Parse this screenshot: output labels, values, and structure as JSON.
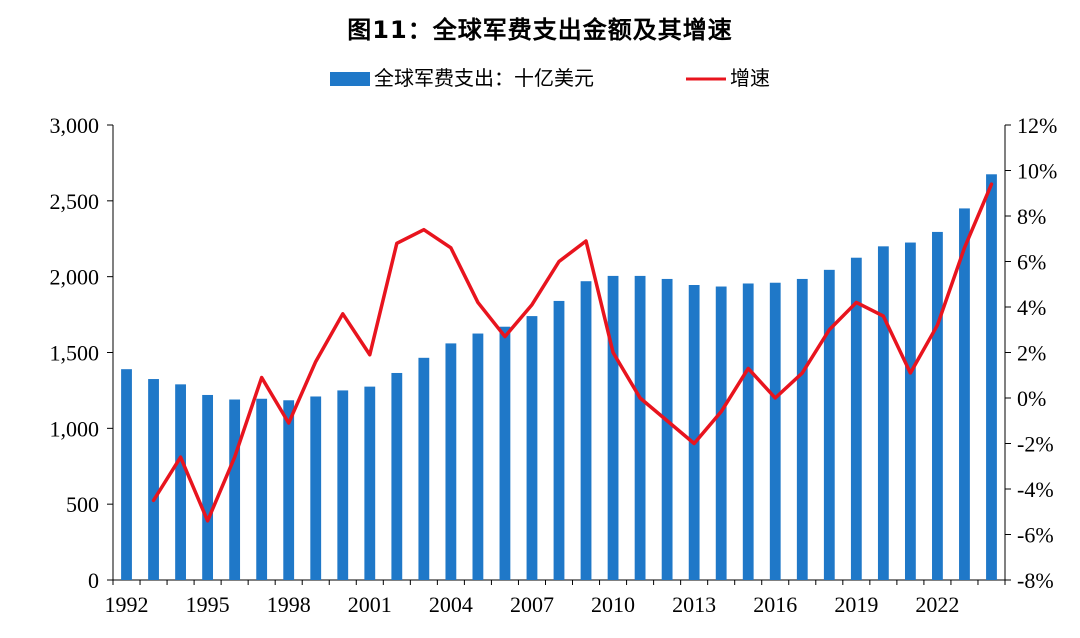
{
  "chart_data": {
    "type": "bar",
    "title": "图11：全球军费支出金额及其增速",
    "categories": [
      1992,
      1993,
      1994,
      1995,
      1996,
      1997,
      1998,
      1999,
      2000,
      2001,
      2002,
      2003,
      2004,
      2005,
      2006,
      2007,
      2008,
      2009,
      2010,
      2011,
      2012,
      2013,
      2014,
      2015,
      2016,
      2017,
      2018,
      2019,
      2020,
      2021,
      2022,
      2023,
      2024
    ],
    "x_tick_labels": [
      "1992",
      "1995",
      "1998",
      "2001",
      "2004",
      "2007",
      "2010",
      "2013",
      "2016",
      "2019",
      "2022"
    ],
    "series": [
      {
        "name": "全球军费支出：十亿美元",
        "type": "bar",
        "axis": "left",
        "color": "#1f78c8",
        "values": [
          1390,
          1325,
          1290,
          1220,
          1190,
          1195,
          1185,
          1210,
          1250,
          1275,
          1365,
          1465,
          1560,
          1625,
          1670,
          1740,
          1840,
          1970,
          2005,
          2005,
          1985,
          1945,
          1935,
          1955,
          1960,
          1985,
          2045,
          2125,
          2200,
          2225,
          2295,
          2450,
          2675
        ]
      },
      {
        "name": "增速",
        "type": "line",
        "axis": "right",
        "color": "#e8141e",
        "values": [
          null,
          -4.5,
          -2.6,
          -5.4,
          -2.6,
          0.9,
          -1.1,
          1.6,
          3.7,
          1.9,
          6.8,
          7.4,
          6.6,
          4.2,
          2.7,
          4.1,
          6.0,
          6.9,
          2.0,
          0.0,
          -1.0,
          -2.0,
          -0.6,
          1.3,
          0.0,
          1.1,
          3.0,
          4.2,
          3.6,
          1.1,
          3.2,
          6.6,
          9.4
        ]
      }
    ],
    "y_left": {
      "ylim": [
        0,
        3000
      ],
      "ticks": [
        "0",
        "500",
        "1,000",
        "1,500",
        "2,000",
        "2,500",
        "3,000"
      ]
    },
    "y_right": {
      "ylim": [
        -8,
        12
      ],
      "ticks": [
        "-8%",
        "-6%",
        "-4%",
        "-2%",
        "0%",
        "2%",
        "4%",
        "6%",
        "8%",
        "10%",
        "12%"
      ]
    },
    "legend_position": "top-center",
    "grid": false
  }
}
